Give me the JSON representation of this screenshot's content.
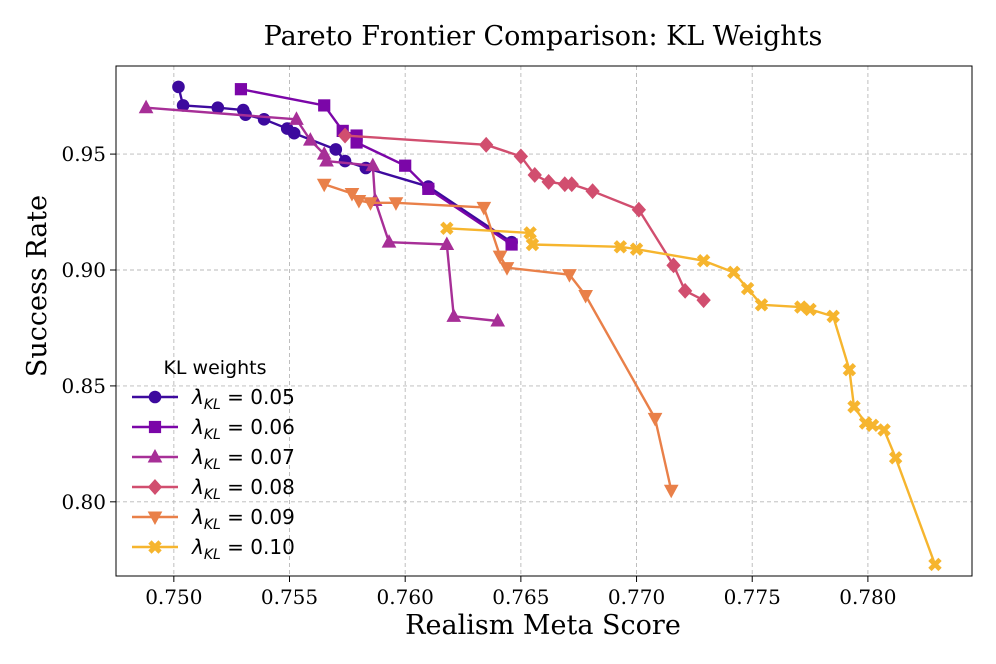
{
  "chart_data": {
    "type": "line",
    "title": "Pareto Frontier Comparison: KL Weights",
    "xlabel": "Realism Meta Score",
    "ylabel": "Success Rate",
    "xlim": [
      0.7475,
      0.7845
    ],
    "ylim": [
      0.768,
      0.988
    ],
    "xticks": [
      0.75,
      0.755,
      0.76,
      0.765,
      0.77,
      0.775,
      0.78
    ],
    "xtick_labels": [
      "0.750",
      "0.755",
      "0.760",
      "0.765",
      "0.770",
      "0.775",
      "0.780"
    ],
    "yticks": [
      0.8,
      0.85,
      0.9,
      0.95
    ],
    "ytick_labels": [
      "0.80",
      "0.85",
      "0.90",
      "0.95"
    ],
    "grid": true,
    "legend_title": "KL weights",
    "legend_position": "lower-left",
    "series": [
      {
        "name": "λKL = 0.05",
        "label_prefix": "λ",
        "label_sub": "KL",
        "label_value": " = 0.05",
        "color": "#3d0a9e",
        "marker": "circle",
        "x": [
          0.7502,
          0.7504,
          0.7519,
          0.753,
          0.7531,
          0.7539,
          0.7549,
          0.7552,
          0.757,
          0.7574,
          0.7583,
          0.761,
          0.7646
        ],
        "y": [
          0.979,
          0.971,
          0.97,
          0.969,
          0.967,
          0.965,
          0.961,
          0.959,
          0.952,
          0.947,
          0.944,
          0.936,
          0.912
        ]
      },
      {
        "name": "λKL = 0.06",
        "label_prefix": "λ",
        "label_sub": "KL",
        "label_value": " = 0.06",
        "color": "#7b06a8",
        "marker": "square",
        "x": [
          0.7529,
          0.7565,
          0.7573,
          0.7579,
          0.7579,
          0.76,
          0.761,
          0.7646
        ],
        "y": [
          0.978,
          0.971,
          0.96,
          0.958,
          0.955,
          0.945,
          0.935,
          0.911
        ]
      },
      {
        "name": "λKL = 0.07",
        "label_prefix": "λ",
        "label_sub": "KL",
        "label_value": " = 0.07",
        "color": "#a72f97",
        "marker": "triangle-up",
        "x": [
          0.7488,
          0.7553,
          0.7559,
          0.7565,
          0.7566,
          0.7586,
          0.7587,
          0.7593,
          0.7618,
          0.7621,
          0.764
        ],
        "y": [
          0.97,
          0.965,
          0.956,
          0.95,
          0.947,
          0.945,
          0.93,
          0.912,
          0.911,
          0.88,
          0.878
        ]
      },
      {
        "name": "λKL = 0.08",
        "label_prefix": "λ",
        "label_sub": "KL",
        "label_value": " = 0.08",
        "color": "#d14e6f",
        "marker": "diamond",
        "x": [
          0.7574,
          0.7635,
          0.765,
          0.7656,
          0.7662,
          0.7669,
          0.7672,
          0.7681,
          0.7701,
          0.7716,
          0.7721,
          0.7729
        ],
        "y": [
          0.958,
          0.954,
          0.949,
          0.941,
          0.938,
          0.937,
          0.937,
          0.934,
          0.926,
          0.902,
          0.891,
          0.887
        ]
      },
      {
        "name": "λKL = 0.09",
        "label_prefix": "λ",
        "label_sub": "KL",
        "label_value": " = 0.09",
        "color": "#e98049",
        "marker": "triangle-down",
        "x": [
          0.7565,
          0.7577,
          0.758,
          0.7585,
          0.7596,
          0.7634,
          0.7641,
          0.7644,
          0.7671,
          0.7678,
          0.7708,
          0.7715
        ],
        "y": [
          0.937,
          0.933,
          0.93,
          0.929,
          0.929,
          0.927,
          0.906,
          0.901,
          0.898,
          0.889,
          0.836,
          0.805
        ]
      },
      {
        "name": "λKL = 0.10",
        "label_prefix": "λ",
        "label_sub": "KL",
        "label_value": " = 0.10",
        "color": "#f6b52e",
        "marker": "x-filled",
        "x": [
          0.7618,
          0.7654,
          0.7655,
          0.7693,
          0.77,
          0.7729,
          0.7742,
          0.7748,
          0.7754,
          0.7771,
          0.7775,
          0.7785,
          0.7792,
          0.7794,
          0.7799,
          0.7802,
          0.7807,
          0.7812,
          0.7829
        ],
        "y": [
          0.918,
          0.916,
          0.911,
          0.91,
          0.909,
          0.904,
          0.899,
          0.892,
          0.885,
          0.884,
          0.883,
          0.88,
          0.857,
          0.841,
          0.834,
          0.833,
          0.831,
          0.819,
          0.773
        ]
      }
    ]
  }
}
